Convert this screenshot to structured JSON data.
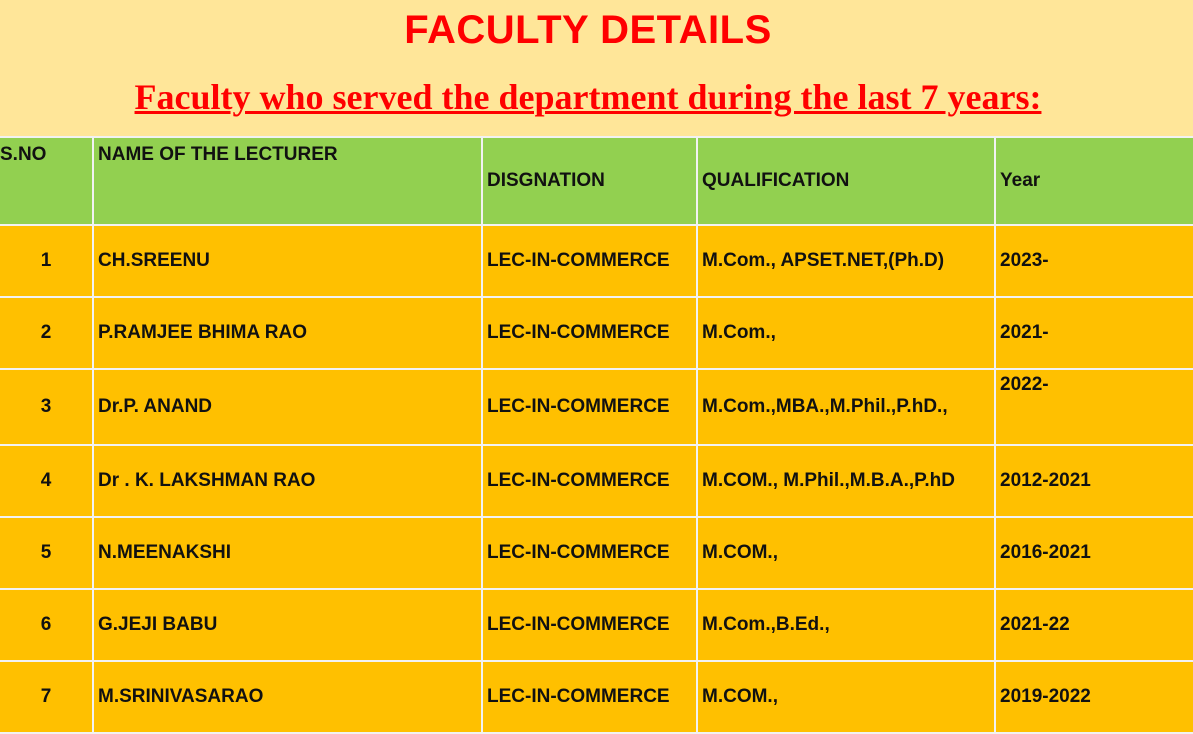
{
  "title": "FACULTY DETAILS",
  "subtitle": "Faculty who served the department during the last 7 years:",
  "table": {
    "headers": [
      "S.NO",
      "NAME OF THE LECTURER",
      "DISGNATION",
      "QUALIFICATION",
      "Year"
    ],
    "rows": [
      [
        "1",
        "CH.SREENU",
        "LEC-IN-COMMERCE",
        "M.Com., APSET.NET,(Ph.D)",
        "2023-"
      ],
      [
        "2",
        "P.RAMJEE BHIMA RAO",
        "LEC-IN-COMMERCE",
        "M.Com.,",
        "2021-"
      ],
      [
        "3",
        "Dr.P. ANAND",
        "LEC-IN-COMMERCE",
        "M.Com.,MBA.,M.Phil.,P.hD.,",
        "2022-"
      ],
      [
        "4",
        "Dr . K. LAKSHMAN RAO",
        "LEC-IN-COMMERCE",
        "M.COM., M.Phil.,M.B.A.,P.hD",
        "2012-2021"
      ],
      [
        "5",
        "N.MEENAKSHI",
        "LEC-IN-COMMERCE",
        "M.COM.,",
        "2016-2021"
      ],
      [
        "6",
        "G.JEJI BABU",
        "LEC-IN-COMMERCE",
        "M.Com.,B.Ed.,",
        "2021-22"
      ],
      [
        "7",
        "M.SRINIVASARAO",
        "LEC-IN-COMMERCE",
        "M.COM.,",
        "2019-2022"
      ]
    ]
  },
  "colors": {
    "title": "#FF0000",
    "background": "#FFE699",
    "header": "#92D050",
    "row": "#FFC000"
  }
}
